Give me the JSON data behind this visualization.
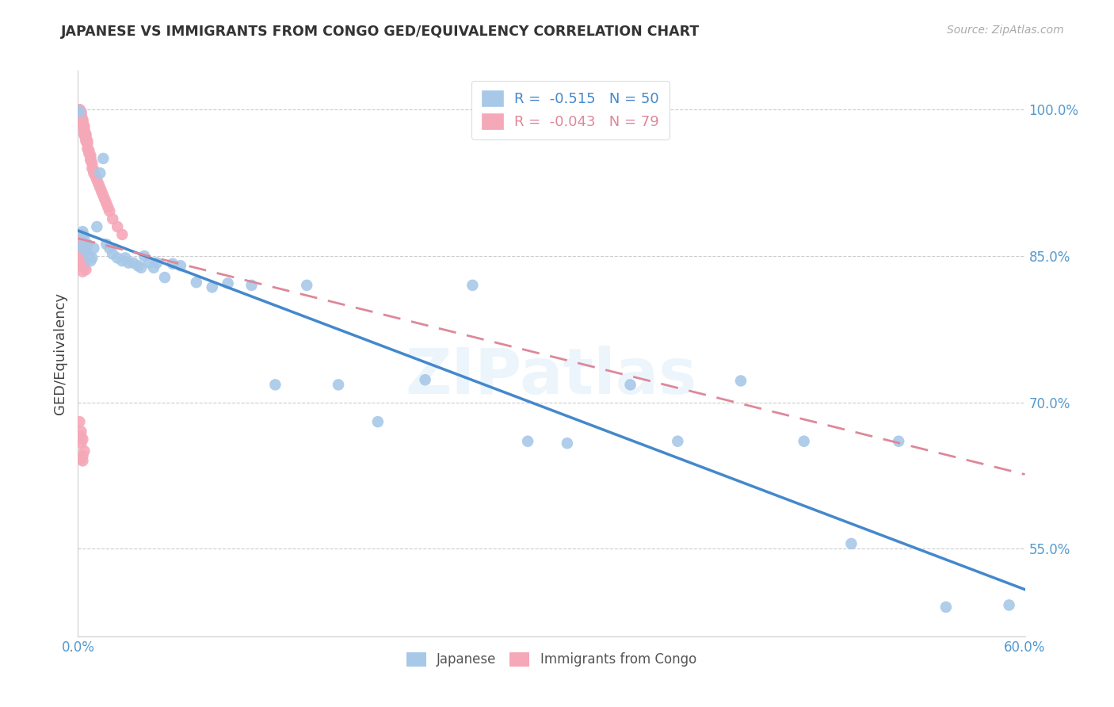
{
  "title": "JAPANESE VS IMMIGRANTS FROM CONGO GED/EQUIVALENCY CORRELATION CHART",
  "source": "Source: ZipAtlas.com",
  "ylabel": "GED/Equivalency",
  "xmin": 0.0,
  "xmax": 0.6,
  "ymin": 0.46,
  "ymax": 1.04,
  "yticks": [
    1.0,
    0.85,
    0.7,
    0.55
  ],
  "ytick_labels": [
    "100.0%",
    "85.0%",
    "70.0%",
    "55.0%"
  ],
  "legend_blue_r": "-0.515",
  "legend_blue_n": "50",
  "legend_pink_r": "-0.043",
  "legend_pink_n": "79",
  "blue_color": "#a8c8e8",
  "pink_color": "#f5a8b8",
  "blue_line_color": "#4488cc",
  "pink_line_color": "#dd8899",
  "watermark": "ZIPatlas",
  "blue_line_x0": 0.0,
  "blue_line_y0": 0.876,
  "blue_line_x1": 0.6,
  "blue_line_y1": 0.508,
  "pink_line_x0": 0.0,
  "pink_line_y0": 0.868,
  "pink_line_x1": 0.6,
  "pink_line_y1": 0.626,
  "japanese_x": [
    0.001,
    0.002,
    0.003,
    0.004,
    0.005,
    0.006,
    0.007,
    0.008,
    0.009,
    0.01,
    0.012,
    0.014,
    0.016,
    0.018,
    0.02,
    0.022,
    0.025,
    0.028,
    0.03,
    0.032,
    0.035,
    0.038,
    0.04,
    0.042,
    0.045,
    0.048,
    0.05,
    0.055,
    0.06,
    0.065,
    0.075,
    0.085,
    0.095,
    0.11,
    0.125,
    0.145,
    0.165,
    0.19,
    0.22,
    0.25,
    0.285,
    0.31,
    0.35,
    0.38,
    0.42,
    0.46,
    0.49,
    0.52,
    0.55,
    0.59
  ],
  "japanese_y": [
    0.998,
    0.86,
    0.875,
    0.87,
    0.855,
    0.862,
    0.85,
    0.845,
    0.848,
    0.858,
    0.88,
    0.935,
    0.95,
    0.862,
    0.858,
    0.852,
    0.848,
    0.845,
    0.848,
    0.843,
    0.843,
    0.84,
    0.838,
    0.85,
    0.843,
    0.838,
    0.843,
    0.828,
    0.842,
    0.84,
    0.823,
    0.818,
    0.822,
    0.82,
    0.718,
    0.82,
    0.718,
    0.68,
    0.723,
    0.82,
    0.66,
    0.658,
    0.718,
    0.66,
    0.722,
    0.66,
    0.555,
    0.66,
    0.49,
    0.492
  ],
  "congo_x": [
    0.001,
    0.001,
    0.001,
    0.002,
    0.002,
    0.002,
    0.002,
    0.002,
    0.002,
    0.003,
    0.003,
    0.003,
    0.003,
    0.003,
    0.004,
    0.004,
    0.004,
    0.004,
    0.004,
    0.005,
    0.005,
    0.005,
    0.005,
    0.006,
    0.006,
    0.006,
    0.007,
    0.007,
    0.008,
    0.008,
    0.008,
    0.009,
    0.009,
    0.01,
    0.01,
    0.011,
    0.012,
    0.013,
    0.014,
    0.015,
    0.016,
    0.017,
    0.018,
    0.019,
    0.02,
    0.022,
    0.025,
    0.028,
    0.002,
    0.003,
    0.001,
    0.002,
    0.003,
    0.004,
    0.005,
    0.003,
    0.004,
    0.005,
    0.002,
    0.003,
    0.001,
    0.002,
    0.002,
    0.003,
    0.004,
    0.002,
    0.003,
    0.004,
    0.005,
    0.003,
    0.001,
    0.002,
    0.003,
    0.002,
    0.003,
    0.002,
    0.003,
    0.004,
    0.002
  ],
  "congo_y": [
    1.0,
    1.0,
    0.998,
    0.998,
    0.996,
    0.994,
    0.992,
    0.99,
    0.988,
    0.99,
    0.988,
    0.987,
    0.985,
    0.984,
    0.983,
    0.98,
    0.978,
    0.976,
    0.974,
    0.975,
    0.973,
    0.97,
    0.968,
    0.968,
    0.965,
    0.96,
    0.958,
    0.955,
    0.953,
    0.95,
    0.948,
    0.945,
    0.94,
    0.938,
    0.935,
    0.932,
    0.928,
    0.924,
    0.92,
    0.916,
    0.912,
    0.908,
    0.904,
    0.9,
    0.896,
    0.888,
    0.88,
    0.872,
    0.86,
    0.855,
    0.868,
    0.866,
    0.864,
    0.862,
    0.86,
    0.872,
    0.858,
    0.856,
    0.858,
    0.854,
    0.852,
    0.85,
    0.848,
    0.846,
    0.844,
    0.842,
    0.84,
    0.838,
    0.836,
    0.834,
    0.68,
    0.67,
    0.662,
    0.665,
    0.645,
    0.658,
    0.64,
    0.65,
    0.642
  ]
}
